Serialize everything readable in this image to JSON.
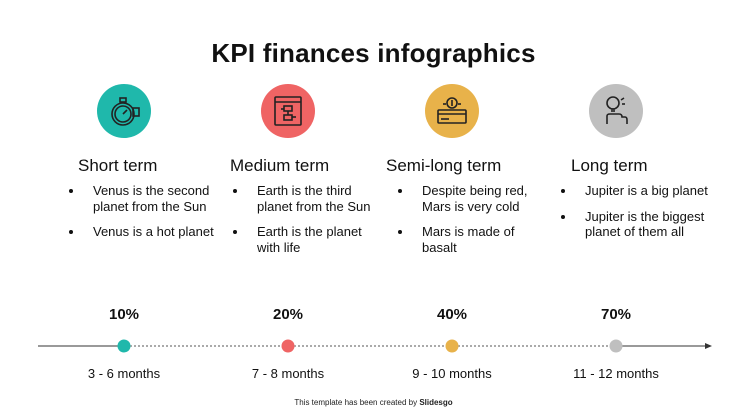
{
  "title": "KPI finances infographics",
  "colors": {
    "teal": "#1fb8ab",
    "red": "#ef6464",
    "yellow": "#e8b24a",
    "gray": "#bfbfbf"
  },
  "columns": [
    {
      "heading": "Short term",
      "icon": "stopwatch-icon",
      "color": "#1fb8ab",
      "bullets": [
        "Venus is the second planet from the Sun",
        "Venus is a hot planet"
      ],
      "percent": "10%",
      "range": "3 - 6 months"
    },
    {
      "heading": "Medium term",
      "icon": "flowchart-board-icon",
      "color": "#ef6464",
      "bullets": [
        "Earth is the third planet from the Sun",
        "Earth is the planet with life"
      ],
      "percent": "20%",
      "range": "7 - 8 months"
    },
    {
      "heading": "Semi-long term",
      "icon": "money-card-icon",
      "color": "#e8b24a",
      "bullets": [
        "Despite being red, Mars is very cold",
        "Mars is made of basalt"
      ],
      "percent": "40%",
      "range": "9 - 10 months"
    },
    {
      "heading": "Long term",
      "icon": "hand-idea-icon",
      "color": "#bfbfbf",
      "bullets": [
        "Jupiter is a big planet",
        "Jupiter is the biggest planet of them all"
      ],
      "percent": "70%",
      "range": "11 - 12 months"
    }
  ],
  "footer": {
    "prefix": "This template has been created by",
    "brand": "Slidesgo"
  }
}
